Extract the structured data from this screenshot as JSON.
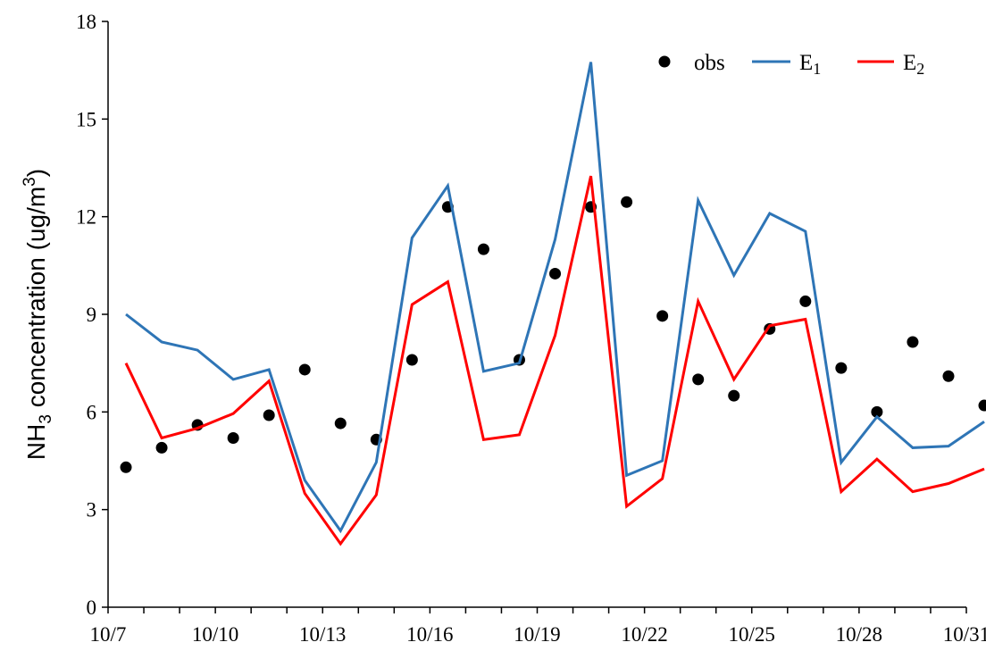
{
  "chart_data": {
    "type": "line",
    "ylabel": "NH3 concentration (ug/m3)",
    "ylabel_parts": {
      "pre": "NH",
      "sub": "3",
      "mid": " concentration (ug/m",
      "sup": "3",
      "post": ")"
    },
    "ylim": [
      0,
      18
    ],
    "yticks": [
      0,
      3,
      6,
      9,
      12,
      15,
      18
    ],
    "xlim": [
      0,
      24
    ],
    "xticks": [
      "10/7",
      "10/10",
      "10/13",
      "10/16",
      "10/19",
      "10/22",
      "10/25",
      "10/28",
      "10/31"
    ],
    "grid": false,
    "legend_position": "top-right",
    "x": [
      "10/7",
      "10/8",
      "10/9",
      "10/10",
      "10/11",
      "10/12",
      "10/13",
      "10/14",
      "10/15",
      "10/16",
      "10/17",
      "10/18",
      "10/19",
      "10/20",
      "10/21",
      "10/22",
      "10/23",
      "10/24",
      "10/25",
      "10/26",
      "10/27",
      "10/28",
      "10/29",
      "10/30",
      "10/31"
    ],
    "series": [
      {
        "name": "obs",
        "name_base": "obs",
        "name_sub": "",
        "style": "markers",
        "color": "#000000",
        "values": [
          4.3,
          4.9,
          5.6,
          5.2,
          5.9,
          7.3,
          5.65,
          5.15,
          7.6,
          12.3,
          11.0,
          7.6,
          10.25,
          12.3,
          12.45,
          8.95,
          7.0,
          6.5,
          8.55,
          9.4,
          7.35,
          6.0,
          8.15,
          7.1,
          6.2
        ]
      },
      {
        "name": "E1",
        "name_base": "E",
        "name_sub": "1",
        "style": "line",
        "color": "#2e75b6",
        "values": [
          9.0,
          8.15,
          7.9,
          7.0,
          7.3,
          3.9,
          2.35,
          4.45,
          11.35,
          12.95,
          7.25,
          7.5,
          11.3,
          16.75,
          4.05,
          4.5,
          12.5,
          10.2,
          12.1,
          11.55,
          4.45,
          5.85,
          4.9,
          4.95,
          5.7
        ]
      },
      {
        "name": "E2",
        "name_base": "E",
        "name_sub": "2",
        "style": "line",
        "color": "#ff0000",
        "values": [
          7.5,
          5.2,
          5.5,
          5.95,
          6.95,
          3.5,
          1.95,
          3.45,
          9.3,
          10.0,
          5.15,
          5.3,
          8.35,
          13.25,
          3.1,
          3.95,
          9.4,
          7.0,
          8.65,
          8.85,
          3.55,
          4.55,
          3.55,
          3.8,
          4.25
        ]
      }
    ]
  }
}
